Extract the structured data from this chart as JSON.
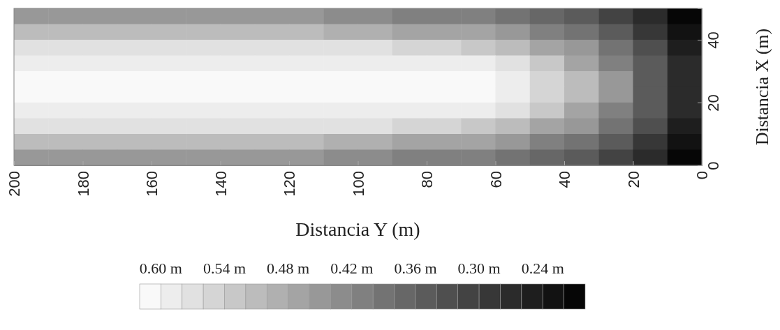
{
  "chart_data": {
    "type": "heatmap",
    "xlabel": "Distancia Y (m)",
    "ylabel": "Distancia X (m)",
    "xlim": [
      200,
      0
    ],
    "xticks": [
      200,
      180,
      160,
      140,
      120,
      100,
      80,
      60,
      40,
      20,
      0
    ],
    "ylim": [
      0,
      50
    ],
    "yticks": [
      0,
      20,
      40
    ],
    "clim": [
      0.62,
      0.2
    ],
    "cticks": [
      {
        "value": 0.6,
        "label": "0.60 m"
      },
      {
        "value": 0.54,
        "label": "0.54 m"
      },
      {
        "value": 0.48,
        "label": "0.48 m"
      },
      {
        "value": 0.42,
        "label": "0.42 m"
      },
      {
        "value": 0.36,
        "label": "0.36 m"
      },
      {
        "value": 0.3,
        "label": "0.30 m"
      },
      {
        "value": 0.24,
        "label": "0.24 m"
      }
    ],
    "cells": [
      [
        0.44,
        0.44,
        0.44,
        0.44,
        0.44,
        0.44,
        0.44,
        0.44,
        0.44,
        0.43,
        0.43,
        0.42,
        0.41,
        0.4,
        0.39,
        0.37,
        0.34,
        0.31,
        0.27,
        0.22
      ],
      [
        0.5,
        0.5,
        0.5,
        0.5,
        0.5,
        0.5,
        0.5,
        0.5,
        0.5,
        0.49,
        0.49,
        0.48,
        0.47,
        0.46,
        0.45,
        0.42,
        0.39,
        0.35,
        0.3,
        0.24
      ],
      [
        0.57,
        0.57,
        0.57,
        0.57,
        0.57,
        0.57,
        0.57,
        0.57,
        0.57,
        0.57,
        0.56,
        0.55,
        0.54,
        0.53,
        0.51,
        0.48,
        0.44,
        0.39,
        0.33,
        0.25
      ],
      [
        0.6,
        0.6,
        0.6,
        0.6,
        0.6,
        0.6,
        0.6,
        0.6,
        0.6,
        0.6,
        0.6,
        0.6,
        0.6,
        0.59,
        0.57,
        0.53,
        0.48,
        0.42,
        0.35,
        0.26
      ],
      [
        0.61,
        0.61,
        0.61,
        0.61,
        0.61,
        0.61,
        0.61,
        0.61,
        0.61,
        0.61,
        0.61,
        0.61,
        0.61,
        0.61,
        0.59,
        0.55,
        0.5,
        0.44,
        0.36,
        0.27
      ],
      [
        0.61,
        0.61,
        0.61,
        0.61,
        0.61,
        0.61,
        0.61,
        0.61,
        0.61,
        0.61,
        0.61,
        0.61,
        0.61,
        0.61,
        0.59,
        0.55,
        0.5,
        0.44,
        0.36,
        0.27
      ],
      [
        0.6,
        0.6,
        0.6,
        0.6,
        0.6,
        0.6,
        0.6,
        0.6,
        0.6,
        0.6,
        0.6,
        0.6,
        0.6,
        0.59,
        0.57,
        0.53,
        0.48,
        0.42,
        0.35,
        0.26
      ],
      [
        0.57,
        0.57,
        0.57,
        0.57,
        0.57,
        0.57,
        0.57,
        0.57,
        0.57,
        0.57,
        0.56,
        0.55,
        0.54,
        0.53,
        0.51,
        0.48,
        0.44,
        0.39,
        0.33,
        0.25
      ],
      [
        0.5,
        0.5,
        0.5,
        0.5,
        0.5,
        0.5,
        0.5,
        0.5,
        0.5,
        0.49,
        0.49,
        0.48,
        0.47,
        0.46,
        0.45,
        0.42,
        0.39,
        0.35,
        0.3,
        0.24
      ],
      [
        0.44,
        0.44,
        0.44,
        0.44,
        0.44,
        0.44,
        0.44,
        0.44,
        0.44,
        0.43,
        0.43,
        0.42,
        0.41,
        0.4,
        0.39,
        0.37,
        0.34,
        0.31,
        0.27,
        0.22
      ]
    ]
  }
}
